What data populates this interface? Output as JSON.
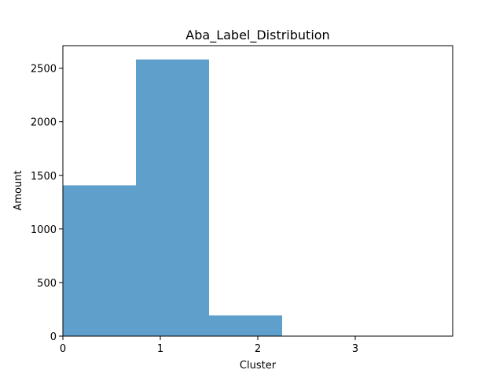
{
  "colors": {
    "bar": "#5f9fcc",
    "axis": "#000000",
    "background": "#ffffff"
  },
  "chart_data": {
    "type": "bar",
    "title": "Aba_Label_Distribution",
    "xlabel": "Cluster",
    "ylabel": "Amount",
    "xlim": [
      0,
      4.0
    ],
    "ylim": [
      0,
      2710
    ],
    "xticks": [
      0,
      1,
      2,
      3
    ],
    "yticks": [
      0,
      500,
      1000,
      1500,
      2000,
      2500
    ],
    "bins": [
      {
        "x0": 0.0,
        "x1": 0.75,
        "value": 1407
      },
      {
        "x0": 0.75,
        "x1": 1.5,
        "value": 2581
      },
      {
        "x0": 1.5,
        "x1": 2.25,
        "value": 194
      },
      {
        "x0": 2.25,
        "x1": 3.0,
        "value": 0
      },
      {
        "x0": 3.0,
        "x1": 3.75,
        "value": 0
      }
    ],
    "grid": false,
    "legend": false
  }
}
